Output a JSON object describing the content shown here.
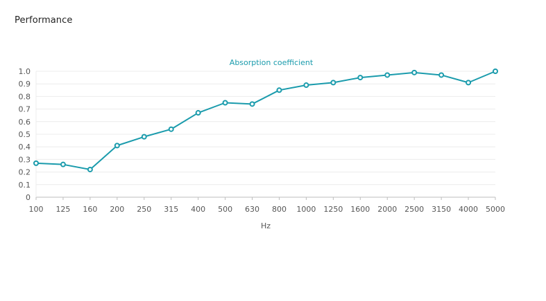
{
  "page": {
    "title": "Performance"
  },
  "colors": {
    "series": "#1a9bac",
    "grid": "#ececec",
    "axis": "#bdbdbd",
    "text": "#555555"
  },
  "chart_data": {
    "type": "line",
    "categories": [
      "100",
      "125",
      "160",
      "200",
      "250",
      "315",
      "400",
      "500",
      "630",
      "800",
      "1000",
      "1250",
      "1600",
      "2000",
      "2500",
      "3150",
      "4000",
      "5000"
    ],
    "series": [
      {
        "name": "Absorption coefficient",
        "values": [
          0.27,
          0.26,
          0.22,
          0.41,
          0.48,
          0.54,
          0.67,
          0.75,
          0.74,
          0.85,
          0.89,
          0.91,
          0.95,
          0.97,
          0.99,
          0.97,
          0.91,
          1.0
        ]
      }
    ],
    "xlabel": "Hz",
    "ylabel": "",
    "ylim": [
      0,
      1.0
    ],
    "yticks": [
      "0",
      "0.1",
      "0.2",
      "0.3",
      "0.4",
      "0.5",
      "0.6",
      "0.7",
      "0.8",
      "0.9",
      "1.0"
    ],
    "grid": true,
    "legend_position": "top-center"
  }
}
